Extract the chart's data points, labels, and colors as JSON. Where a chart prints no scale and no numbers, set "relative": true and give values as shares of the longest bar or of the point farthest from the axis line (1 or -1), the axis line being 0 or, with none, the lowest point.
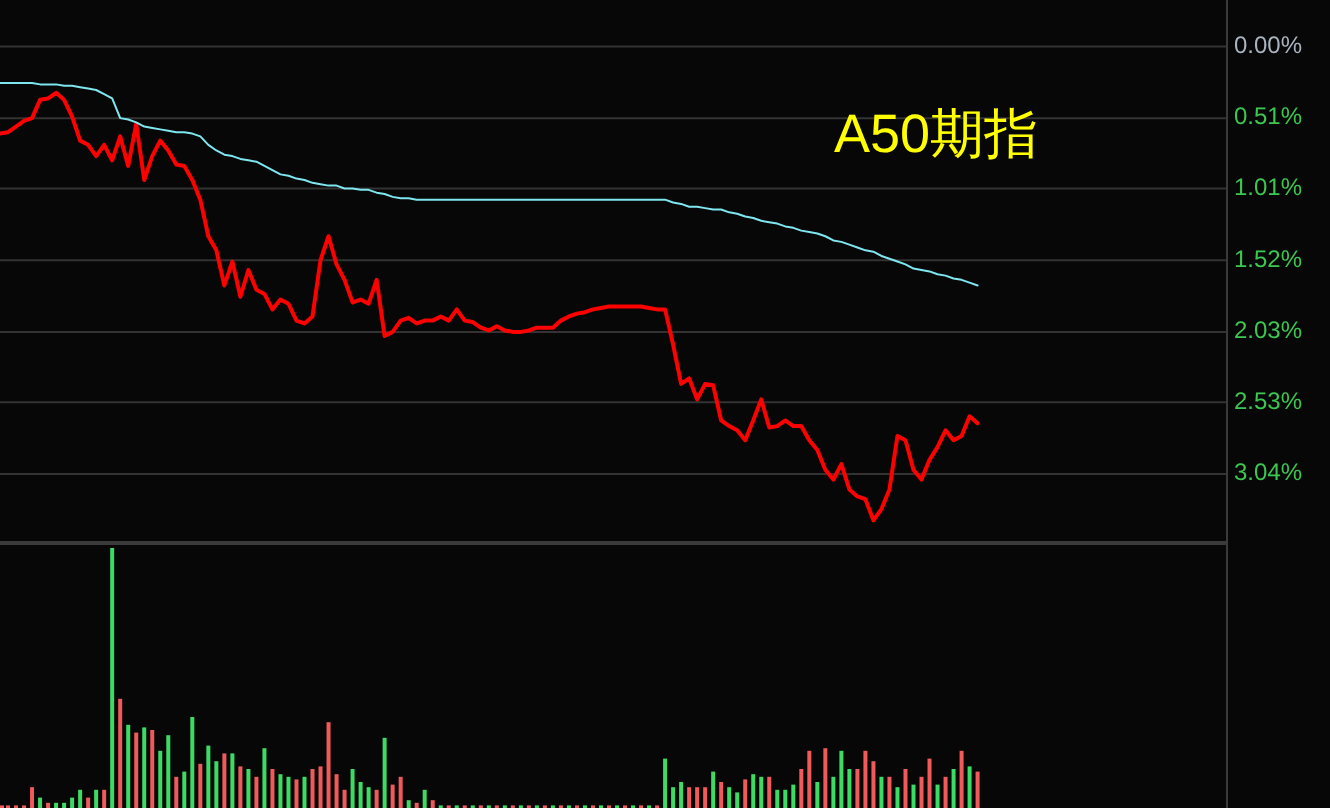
{
  "chart_data": [
    {
      "type": "line",
      "title": "A50期指",
      "tick_labels": "y",
      "grid": "y",
      "categories": [
        null,
        null,
        null,
        null,
        null,
        null,
        null,
        null,
        null,
        null,
        null,
        null,
        null,
        null,
        null,
        null,
        null,
        null,
        null,
        null,
        null,
        null,
        null,
        null,
        null,
        null,
        null,
        null,
        null,
        null,
        null,
        null,
        null,
        null,
        null,
        null,
        null,
        null,
        null,
        null,
        null,
        null,
        null,
        null,
        null,
        null,
        null,
        null,
        null,
        null,
        null,
        null,
        null,
        null,
        null,
        null,
        null,
        null,
        null,
        null,
        null,
        null,
        null,
        null,
        null,
        null,
        null,
        null,
        null,
        null,
        null,
        null,
        null,
        null,
        null,
        null,
        null,
        null,
        null,
        null,
        null,
        null,
        null,
        null,
        null,
        null,
        null,
        null,
        null,
        null,
        null,
        null,
        null,
        null,
        null,
        null,
        null,
        null,
        null,
        null,
        null,
        null,
        null,
        null,
        null,
        null,
        null,
        null,
        null,
        null,
        null,
        null,
        null,
        null,
        null,
        null,
        null,
        null,
        null,
        null,
        null,
        null,
        null,
        null,
        null,
        null,
        null,
        null,
        null,
        null,
        null,
        null,
        null,
        null,
        null,
        null,
        null,
        null,
        null,
        null,
        null,
        null,
        null,
        null,
        null,
        null,
        null,
        null,
        null,
        null,
        null,
        null,
        null,
        null
      ],
      "ylim": [
        3.51,
        -0.33
      ],
      "yticks": [
        {
          "value": 0,
          "label": "0.00%"
        },
        {
          "value": 0.51,
          "label": "0.51%"
        },
        {
          "value": 1.01,
          "label": "1.01%"
        },
        {
          "value": 1.52,
          "label": "1.52%"
        },
        {
          "value": 2.03,
          "label": "2.03%"
        },
        {
          "value": 2.53,
          "label": "2.53%"
        },
        {
          "value": 3.04,
          "label": "3.04%"
        }
      ],
      "series": [
        {
          "color": "#ff0000",
          "values": [
            0.62,
            0.61,
            0.57,
            0.53,
            0.51,
            0.38,
            0.37,
            0.33,
            0.38,
            0.5,
            0.67,
            0.7,
            0.78,
            0.7,
            0.81,
            0.64,
            0.85,
            0.55,
            0.95,
            0.78,
            0.67,
            0.74,
            0.84,
            0.85,
            0.95,
            1.09,
            1.35,
            1.45,
            1.7,
            1.53,
            1.78,
            1.59,
            1.73,
            1.76,
            1.87,
            1.8,
            1.83,
            1.95,
            1.97,
            1.92,
            1.52,
            1.35,
            1.55,
            1.66,
            1.82,
            1.8,
            1.83,
            1.66,
            2.06,
            2.03,
            1.95,
            1.93,
            1.97,
            1.95,
            1.95,
            1.92,
            1.95,
            1.87,
            1.95,
            1.96,
            2.0,
            2.02,
            1.99,
            2.02,
            2.03,
            2.03,
            2.02,
            2.0,
            2.0,
            2.0,
            1.95,
            1.92,
            1.9,
            1.89,
            1.87,
            1.86,
            1.85,
            1.85,
            1.85,
            1.85,
            1.85,
            1.86,
            1.87,
            1.87,
            2.12,
            2.4,
            2.36,
            2.51,
            2.4,
            2.41,
            2.66,
            2.7,
            2.73,
            2.8,
            2.66,
            2.51,
            2.71,
            2.7,
            2.66,
            2.7,
            2.7,
            2.8,
            2.87,
            3.01,
            3.08,
            2.97,
            3.15,
            3.2,
            3.22,
            3.37,
            3.29,
            3.15,
            2.77,
            2.8,
            3.01,
            3.08,
            2.94,
            2.85,
            2.73,
            2.8,
            2.77,
            2.63,
            2.68,
            null,
            null,
            null,
            null,
            null,
            null,
            null,
            null,
            null,
            null,
            null,
            null,
            null,
            null,
            null,
            null,
            null,
            null,
            null,
            null,
            null,
            null,
            null,
            null,
            null,
            null,
            null,
            null,
            null,
            null,
            null
          ]
        },
        {
          "color": "#7fe6f0",
          "values": [
            0.26,
            0.26,
            0.26,
            0.26,
            0.26,
            0.27,
            0.27,
            0.27,
            0.28,
            0.28,
            0.29,
            0.3,
            0.31,
            0.34,
            0.37,
            0.51,
            0.52,
            0.54,
            0.57,
            0.58,
            0.59,
            0.6,
            0.61,
            0.61,
            0.62,
            0.64,
            0.7,
            0.74,
            0.77,
            0.78,
            0.8,
            0.81,
            0.82,
            0.85,
            0.88,
            0.91,
            0.92,
            0.94,
            0.95,
            0.97,
            0.98,
            0.99,
            0.99,
            1.01,
            1.01,
            1.02,
            1.02,
            1.04,
            1.05,
            1.07,
            1.08,
            1.08,
            1.09,
            1.09,
            1.09,
            1.09,
            1.09,
            1.09,
            1.09,
            1.09,
            1.09,
            1.09,
            1.09,
            1.09,
            1.09,
            1.09,
            1.09,
            1.09,
            1.09,
            1.09,
            1.09,
            1.09,
            1.09,
            1.09,
            1.09,
            1.09,
            1.09,
            1.09,
            1.09,
            1.09,
            1.09,
            1.09,
            1.09,
            1.09,
            1.11,
            1.12,
            1.14,
            1.14,
            1.15,
            1.16,
            1.16,
            1.18,
            1.19,
            1.21,
            1.22,
            1.24,
            1.25,
            1.26,
            1.28,
            1.29,
            1.31,
            1.32,
            1.33,
            1.35,
            1.38,
            1.39,
            1.41,
            1.43,
            1.45,
            1.46,
            1.49,
            1.51,
            1.53,
            1.55,
            1.58,
            1.59,
            1.6,
            1.62,
            1.63,
            1.65,
            1.66,
            1.68,
            1.7,
            null,
            null,
            null,
            null,
            null,
            null,
            null,
            null,
            null,
            null,
            null,
            null,
            null,
            null,
            null,
            null,
            null,
            null,
            null,
            null,
            null,
            null,
            null,
            null,
            null,
            null,
            null,
            null,
            null,
            null,
            null
          ]
        }
      ]
    },
    {
      "type": "bar",
      "relative": true,
      "categories": [
        null,
        null,
        null,
        null,
        null,
        null,
        null,
        null,
        null,
        null,
        null,
        null,
        null,
        null,
        null,
        null,
        null,
        null,
        null,
        null,
        null,
        null,
        null,
        null,
        null,
        null,
        null,
        null,
        null,
        null,
        null,
        null,
        null,
        null,
        null,
        null,
        null,
        null,
        null,
        null,
        null,
        null,
        null,
        null,
        null,
        null,
        null,
        null,
        null,
        null,
        null,
        null,
        null,
        null,
        null,
        null,
        null,
        null,
        null,
        null,
        null,
        null,
        null,
        null,
        null,
        null,
        null,
        null,
        null,
        null,
        null,
        null,
        null,
        null,
        null,
        null,
        null,
        null,
        null,
        null,
        null,
        null,
        null,
        null,
        null,
        null,
        null,
        null,
        null,
        null,
        null,
        null,
        null,
        null,
        null,
        null,
        null,
        null,
        null,
        null,
        null,
        null,
        null,
        null,
        null,
        null,
        null,
        null,
        null,
        null,
        null,
        null,
        null,
        null,
        null,
        null,
        null,
        null,
        null,
        null,
        null,
        null,
        null,
        null,
        null,
        null,
        null,
        null,
        null,
        null,
        null,
        null,
        null,
        null,
        null,
        null,
        null,
        null,
        null,
        null,
        null,
        null,
        null,
        null,
        null,
        null,
        null,
        null,
        null,
        null,
        null,
        null,
        null,
        null
      ],
      "values": [
        0.01,
        0.01,
        0.01,
        0.01,
        0.08,
        0.04,
        0.02,
        0.02,
        0.02,
        0.04,
        0.07,
        0.04,
        0.07,
        0.07,
        1,
        0.42,
        0.32,
        0.29,
        0.31,
        0.3,
        0.22,
        0.28,
        0.12,
        0.14,
        0.35,
        0.17,
        0.24,
        0.18,
        0.21,
        0.21,
        0.16,
        0.15,
        0.12,
        0.23,
        0.15,
        0.13,
        0.12,
        0.11,
        0.12,
        0.15,
        0.16,
        0.33,
        0.13,
        0.07,
        0.15,
        0.1,
        0.08,
        0.07,
        0.27,
        0.09,
        0.12,
        0.03,
        0.02,
        0.07,
        0.03,
        0.01,
        0.01,
        0.01,
        0.01,
        0.01,
        0.01,
        0.01,
        0.01,
        0.01,
        0.01,
        0.01,
        0.01,
        0.01,
        0.01,
        0.01,
        0.01,
        0.01,
        0.01,
        0.01,
        0.01,
        0.01,
        0.01,
        0.01,
        0.01,
        0.01,
        0.01,
        0.01,
        0.01,
        0.19,
        0.08,
        0.1,
        0.08,
        0.08,
        0.08,
        0.14,
        0.1,
        0.08,
        0.06,
        0.11,
        0.13,
        0.12,
        0.12,
        0.07,
        0.07,
        0.09,
        0.15,
        0.22,
        0.1,
        0.23,
        0.12,
        0.22,
        0.15,
        0.15,
        0.22,
        0.18,
        0.12,
        0.12,
        0.08,
        0.15,
        0.09,
        0.12,
        0.19,
        0.09,
        0.12,
        0.15,
        0.22,
        0.16,
        0.14,
        null,
        null,
        null,
        null,
        null,
        null,
        null,
        null,
        null,
        null,
        null,
        null,
        null,
        null,
        null,
        null,
        null,
        null,
        null,
        null,
        null,
        null,
        null,
        null,
        null,
        null,
        null,
        null,
        null,
        null,
        null
      ],
      "colors": [
        "#f05a5a",
        "#f05a5a",
        "#f05a5a",
        "#f05a5a",
        "#f05a5a",
        "#3cdc64",
        "#f05a5a",
        "#3cdc64",
        "#3cdc64",
        "#3cdc64",
        "#3cdc64",
        "#f05a5a",
        "#3cdc64",
        "#f05a5a",
        "#3cdc64",
        "#f05a5a",
        "#3cdc64",
        "#f05a5a",
        "#3cdc64",
        "#f05a5a",
        "#3cdc64",
        "#3cdc64",
        "#f05a5a",
        "#3cdc64",
        "#3cdc64",
        "#f05a5a",
        "#3cdc64",
        "#3cdc64",
        "#f05a5a",
        "#3cdc64",
        "#f05a5a",
        "#3cdc64",
        "#f05a5a",
        "#3cdc64",
        "#f05a5a",
        "#3cdc64",
        "#3cdc64",
        "#f05a5a",
        "#3cdc64",
        "#f05a5a",
        "#f05a5a",
        "#f05a5a",
        "#f05a5a",
        "#f05a5a",
        "#3cdc64",
        "#3cdc64",
        "#3cdc64",
        "#f05a5a",
        "#3cdc64",
        "#f05a5a",
        "#f05a5a",
        "#3cdc64",
        "#f05a5a",
        "#3cdc64",
        "#f05a5a",
        "#3cdc64",
        "#f05a5a",
        "#3cdc64",
        "#f05a5a",
        "#3cdc64",
        "#f05a5a",
        "#3cdc64",
        "#f05a5a",
        "#3cdc64",
        "#f05a5a",
        "#3cdc64",
        "#f05a5a",
        "#3cdc64",
        "#f05a5a",
        "#3cdc64",
        "#f05a5a",
        "#3cdc64",
        "#f05a5a",
        "#3cdc64",
        "#f05a5a",
        "#3cdc64",
        "#f05a5a",
        "#3cdc64",
        "#f05a5a",
        "#3cdc64",
        "#f05a5a",
        "#3cdc64",
        "#f05a5a",
        "#3cdc64",
        "#3cdc64",
        "#3cdc64",
        "#f05a5a",
        "#f05a5a",
        "#f05a5a",
        "#3cdc64",
        "#f05a5a",
        "#3cdc64",
        "#3cdc64",
        "#f05a5a",
        "#3cdc64",
        "#3cdc64",
        "#f05a5a",
        "#3cdc64",
        "#3cdc64",
        "#3cdc64",
        "#f05a5a",
        "#f05a5a",
        "#3cdc64",
        "#f05a5a",
        "#3cdc64",
        "#3cdc64",
        "#3cdc64",
        "#f05a5a",
        "#f05a5a",
        "#f05a5a",
        "#3cdc64",
        "#f05a5a",
        "#3cdc64",
        "#f05a5a",
        "#3cdc64",
        "#f05a5a",
        "#f05a5a",
        "#3cdc64",
        "#f05a5a",
        "#3cdc64",
        "#f05a5a",
        "#3cdc64",
        "#f05a5a",
        null,
        null,
        null,
        null,
        null,
        null,
        null,
        null,
        null,
        null,
        null,
        null,
        null,
        null,
        null,
        null,
        null,
        null,
        null,
        null,
        null,
        null,
        null,
        null,
        null,
        null,
        null,
        null,
        null,
        null,
        null
      ]
    }
  ]
}
